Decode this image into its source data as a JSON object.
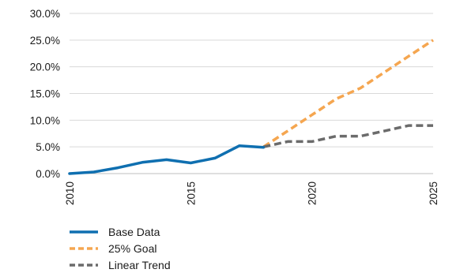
{
  "chart_data": {
    "type": "line",
    "title": "",
    "xlabel": "",
    "ylabel": "",
    "xlim": [
      2010,
      2025
    ],
    "ylim": [
      0,
      0.3
    ],
    "x_ticks": [
      2010,
      2015,
      2020,
      2025
    ],
    "x_tick_labels": [
      "2010",
      "2015",
      "2020",
      "2025"
    ],
    "y_ticks": [
      0,
      0.05,
      0.1,
      0.15,
      0.2,
      0.25,
      0.3
    ],
    "y_tick_labels": [
      "0.0%",
      "5.0%",
      "10.0%",
      "15.0%",
      "20.0%",
      "25.0%",
      "30.0%"
    ],
    "grid": "horizontal",
    "legend_position": "bottom-left",
    "series": [
      {
        "name": "Base Data",
        "style": "solid",
        "color": "#0f6fb0",
        "x": [
          2010,
          2011,
          2012,
          2013,
          2014,
          2015,
          2016,
          2017,
          2018
        ],
        "y": [
          0.0,
          0.003,
          0.011,
          0.021,
          0.026,
          0.02,
          0.029,
          0.052,
          0.049
        ]
      },
      {
        "name": "25% Goal",
        "style": "dashed",
        "color": "#f5a650",
        "x": [
          2018,
          2019,
          2020,
          2021,
          2022,
          2023,
          2024,
          2025
        ],
        "y": [
          0.05,
          0.08,
          0.11,
          0.14,
          0.16,
          0.19,
          0.22,
          0.25
        ]
      },
      {
        "name": "Linear Trend",
        "style": "dashed",
        "color": "#6b6b6b",
        "x": [
          2018,
          2019,
          2020,
          2021,
          2022,
          2023,
          2024,
          2025
        ],
        "y": [
          0.05,
          0.06,
          0.06,
          0.07,
          0.07,
          0.08,
          0.09,
          0.09
        ]
      }
    ]
  }
}
